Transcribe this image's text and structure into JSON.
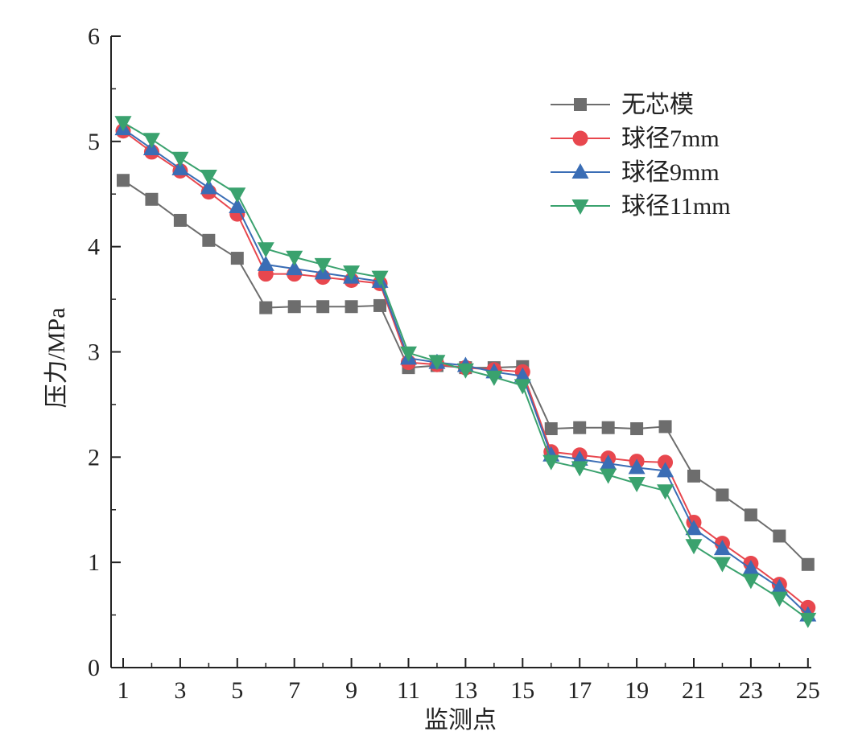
{
  "chart_data": {
    "type": "line",
    "title": "",
    "xlabel": "监测点",
    "ylabel": "压力/MPa",
    "xlim": [
      1,
      25
    ],
    "ylim": [
      0,
      6
    ],
    "x_ticks": [
      1,
      3,
      5,
      7,
      9,
      11,
      13,
      15,
      17,
      19,
      21,
      23,
      25
    ],
    "y_ticks": [
      0,
      1,
      2,
      3,
      4,
      5,
      6
    ],
    "grid": false,
    "legend_position": "top-right",
    "x": [
      1,
      2,
      3,
      4,
      5,
      6,
      7,
      8,
      9,
      10,
      11,
      12,
      13,
      14,
      15,
      16,
      17,
      18,
      19,
      20,
      21,
      22,
      23,
      24,
      25
    ],
    "series": [
      {
        "name": "无芯模",
        "color": "#6d6d6d",
        "marker": "square",
        "values": [
          4.63,
          4.45,
          4.25,
          4.06,
          3.89,
          3.42,
          3.43,
          3.43,
          3.43,
          3.44,
          2.85,
          2.87,
          2.85,
          2.85,
          2.86,
          2.27,
          2.28,
          2.28,
          2.27,
          2.29,
          1.82,
          1.64,
          1.45,
          1.25,
          0.98
        ]
      },
      {
        "name": "球径7mm",
        "color": "#e8474e",
        "marker": "circle",
        "values": [
          5.1,
          4.9,
          4.72,
          4.52,
          4.31,
          3.74,
          3.74,
          3.71,
          3.68,
          3.65,
          2.9,
          2.88,
          2.85,
          2.83,
          2.81,
          2.05,
          2.02,
          1.99,
          1.96,
          1.95,
          1.38,
          1.18,
          0.99,
          0.79,
          0.57
        ]
      },
      {
        "name": "球径9mm",
        "color": "#3a6db5",
        "marker": "triangle-up",
        "values": [
          5.12,
          4.93,
          4.74,
          4.56,
          4.38,
          3.83,
          3.79,
          3.75,
          3.71,
          3.67,
          2.94,
          2.9,
          2.87,
          2.81,
          2.77,
          2.02,
          1.98,
          1.94,
          1.9,
          1.87,
          1.32,
          1.13,
          0.94,
          0.76,
          0.5
        ]
      },
      {
        "name": "球径11mm",
        "color": "#3aa26e",
        "marker": "triangle-down",
        "values": [
          5.18,
          5.02,
          4.84,
          4.67,
          4.5,
          3.98,
          3.9,
          3.83,
          3.76,
          3.71,
          2.99,
          2.91,
          2.83,
          2.76,
          2.68,
          1.96,
          1.9,
          1.83,
          1.75,
          1.68,
          1.16,
          0.99,
          0.83,
          0.66,
          0.46
        ]
      }
    ]
  }
}
